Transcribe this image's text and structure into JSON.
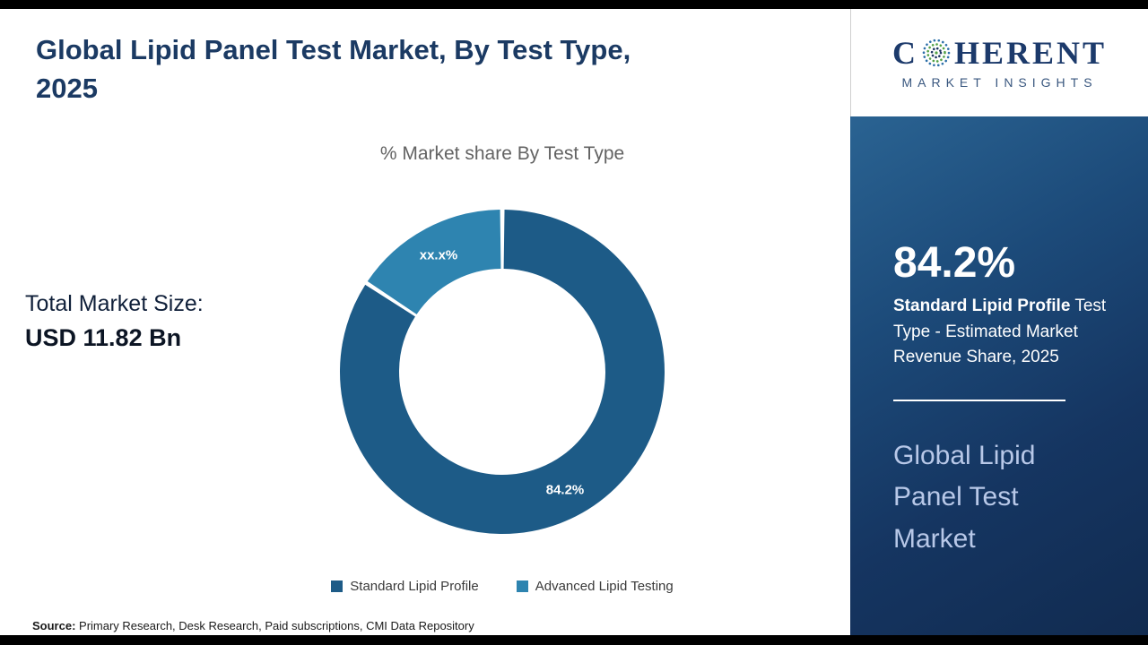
{
  "page": {
    "title_line1": "Global Lipid Panel Test Market, By Test Type,",
    "title_line2": "2025",
    "subtitle": "% Market share By Test Type",
    "total_label": "Total Market Size:",
    "total_value": "USD 11.82 Bn",
    "source_label": "Source:",
    "source_text": " Primary Research, Desk Research, Paid subscriptions, CMI Data Repository"
  },
  "chart_data": {
    "type": "pie",
    "donut": true,
    "title": "% Market share By Test Type",
    "legend_position": "bottom",
    "series": [
      {
        "name": "Standard Lipid Profile",
        "value": 84.2,
        "label": "84.2%",
        "color": "#1d5b87"
      },
      {
        "name": "Advanced Lipid Testing",
        "value": 15.8,
        "label": "xx.x%",
        "color": "#2e84b0"
      }
    ]
  },
  "sidebar": {
    "logo": {
      "brand_first": "C",
      "brand_rest": "HERENT",
      "tagline": "MARKET INSIGHTS"
    },
    "stat_value": "84.2%",
    "stat_desc_bold": "Standard Lipid Profile",
    "stat_desc_rest": " Test Type - Estimated Market Revenue Share, 2025",
    "panel_title": "Global Lipid Panel Test Market"
  },
  "colors": {
    "accent_dark_slice": "#1d5b87",
    "accent_light_slice": "#2e84b0",
    "sidebar_navy": "#153561",
    "title_navy": "#1b3a63"
  }
}
